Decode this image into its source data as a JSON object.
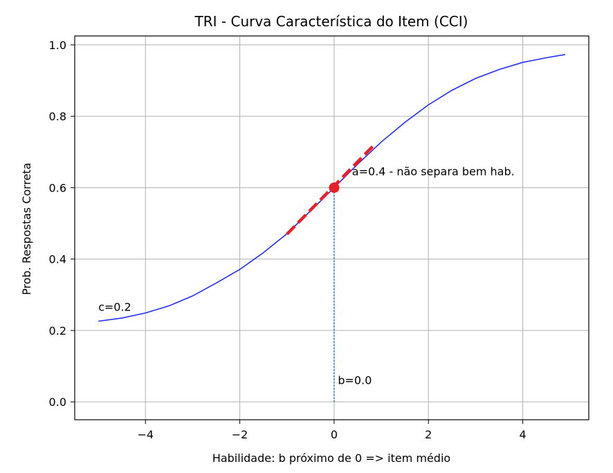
{
  "chart_data": {
    "type": "line",
    "title": "TRI - Curva Característica do Item (CCI)",
    "xlabel": "Habilidade: b próximo de 0 => item médio",
    "ylabel": "Prob. Respostas Correta",
    "xlim": [
      -5.5,
      5.4
    ],
    "ylim": [
      -0.05,
      1.025
    ],
    "x_ticks": [
      {
        "value": -4,
        "label": "−4"
      },
      {
        "value": -2,
        "label": "−2"
      },
      {
        "value": 0,
        "label": "0"
      },
      {
        "value": 2,
        "label": "2"
      },
      {
        "value": 4,
        "label": "4"
      }
    ],
    "y_ticks": [
      {
        "value": 0.0,
        "label": "0.0"
      },
      {
        "value": 0.2,
        "label": "0.2"
      },
      {
        "value": 0.4,
        "label": "0.4"
      },
      {
        "value": 0.6,
        "label": "0.6"
      },
      {
        "value": 0.8,
        "label": "0.8"
      },
      {
        "value": 1.0,
        "label": "1.0"
      }
    ],
    "grid": true,
    "series": [
      {
        "kind": "line",
        "color": "#1f2ef0",
        "x": [
          -5.0,
          -4.5,
          -4.0,
          -3.5,
          -3.0,
          -2.5,
          -2.0,
          -1.5,
          -1.0,
          -0.5,
          0.0,
          0.5,
          1.0,
          1.5,
          2.0,
          2.5,
          3.0,
          3.5,
          4.0,
          4.5,
          4.9
        ],
        "y": [
          0.226,
          0.235,
          0.249,
          0.269,
          0.297,
          0.333,
          0.371,
          0.418,
          0.471,
          0.535,
          0.6,
          0.666,
          0.728,
          0.783,
          0.832,
          0.873,
          0.906,
          0.931,
          0.951,
          0.964,
          0.973
        ]
      },
      {
        "kind": "dashed-tangent",
        "color": "#e8202a",
        "x": [
          -1.0,
          0.85
        ],
        "y": [
          0.47,
          0.72
        ]
      },
      {
        "kind": "point",
        "color": "#e8202a",
        "x": [
          0.0
        ],
        "y": [
          0.6
        ]
      },
      {
        "kind": "dotted-vertical",
        "color": "#1f77b4",
        "x": [
          0.0,
          0.0
        ],
        "y": [
          0.0,
          0.6
        ]
      }
    ],
    "annotations": [
      {
        "text": "a=0.4 - não separa bem hab.",
        "x": 0.38,
        "y": 0.635
      },
      {
        "text": "c=0.2",
        "x": -5.0,
        "y": 0.255
      },
      {
        "text": "b=0.0",
        "x": 0.08,
        "y": 0.05
      }
    ]
  }
}
